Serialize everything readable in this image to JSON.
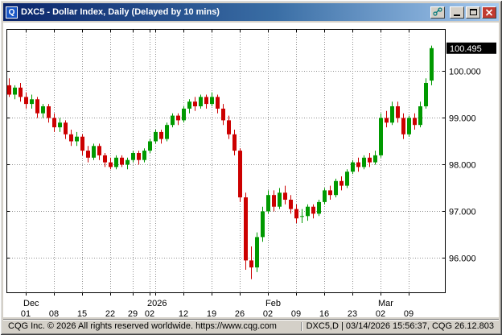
{
  "window": {
    "title": "DXC5 - Dollar Index, Daily (Delayed by 10 mins)",
    "icon_letter": "Q",
    "titlebar_icons": [
      "link-icon",
      "minimize-icon",
      "maximize-icon",
      "close-icon"
    ]
  },
  "status_bar": {
    "left": "CQG Inc. © 2026 All rights reserved worldwide. https://www.cqg.com",
    "right": "DXC5,D | 03/14/2026 15:56:37, CQG 26.12.803"
  },
  "chart_data": {
    "type": "candlestick",
    "symbol": "DXC5",
    "period": "Daily",
    "title": "DXC5 - Dollar Index, Daily (Delayed by 10 mins)",
    "grid": true,
    "colors": {
      "up": "#009900",
      "down": "#cc0000",
      "grid": "#909090",
      "axis_text": "#000000",
      "price_tag_bg": "#000000",
      "price_tag_text": "#ffffff"
    },
    "y_axis": {
      "min": 95.25,
      "max": 100.905,
      "ticks": [
        {
          "value": 100,
          "label": "100.000"
        },
        {
          "value": 99,
          "label": "99.000"
        },
        {
          "value": 98,
          "label": "98.000"
        },
        {
          "value": 97,
          "label": "97.000"
        },
        {
          "value": 96,
          "label": "96.000"
        }
      ]
    },
    "current_price": 100.495,
    "current_price_label": "100.495",
    "x_ticks": [
      {
        "i": 3,
        "label": "01"
      },
      {
        "i": 8,
        "label": "08"
      },
      {
        "i": 13,
        "label": "15"
      },
      {
        "i": 18,
        "label": "22"
      },
      {
        "i": 22,
        "label": "29"
      },
      {
        "i": 25,
        "label": "02"
      },
      {
        "i": 31,
        "label": "12"
      },
      {
        "i": 36,
        "label": "19"
      },
      {
        "i": 41,
        "label": "26"
      },
      {
        "i": 46,
        "label": "02"
      },
      {
        "i": 51,
        "label": "09"
      },
      {
        "i": 56,
        "label": "16"
      },
      {
        "i": 61,
        "label": "23"
      },
      {
        "i": 66,
        "label": "02"
      },
      {
        "i": 71,
        "label": "09"
      }
    ],
    "month_labels": [
      {
        "i": 3,
        "label": "Dec"
      },
      {
        "i": 25,
        "label": "2026"
      },
      {
        "i": 46,
        "label": "Feb"
      },
      {
        "i": 66,
        "label": "Mar"
      }
    ],
    "grid_indices": [
      3,
      8,
      13,
      18,
      22,
      25,
      26,
      31,
      36,
      41,
      46,
      51,
      56,
      61,
      66,
      71
    ],
    "candles": [
      [
        99.7,
        99.85,
        99.45,
        99.5
      ],
      [
        99.5,
        99.7,
        99.4,
        99.65
      ],
      [
        99.65,
        99.75,
        99.35,
        99.45
      ],
      [
        99.45,
        99.55,
        99.2,
        99.3
      ],
      [
        99.3,
        99.5,
        99.2,
        99.4
      ],
      [
        99.4,
        99.45,
        99.0,
        99.1
      ],
      [
        99.1,
        99.3,
        99.0,
        99.25
      ],
      [
        99.25,
        99.3,
        98.9,
        99.0
      ],
      [
        99.0,
        99.1,
        98.7,
        98.8
      ],
      [
        98.8,
        99.0,
        98.7,
        98.9
      ],
      [
        98.9,
        98.95,
        98.55,
        98.65
      ],
      [
        98.65,
        98.75,
        98.4,
        98.5
      ],
      [
        98.5,
        98.7,
        98.4,
        98.6
      ],
      [
        98.6,
        98.65,
        98.2,
        98.3
      ],
      [
        98.3,
        98.4,
        98.05,
        98.15
      ],
      [
        98.15,
        98.45,
        98.1,
        98.4
      ],
      [
        98.4,
        98.45,
        98.1,
        98.2
      ],
      [
        98.2,
        98.25,
        97.95,
        98.05
      ],
      [
        98.05,
        98.15,
        97.9,
        97.95
      ],
      [
        97.95,
        98.2,
        97.9,
        98.15
      ],
      [
        98.15,
        98.2,
        97.95,
        98.0
      ],
      [
        98.0,
        98.15,
        97.9,
        98.1
      ],
      [
        98.1,
        98.3,
        98.05,
        98.25
      ],
      [
        98.25,
        98.3,
        98.0,
        98.1
      ],
      [
        98.1,
        98.35,
        98.05,
        98.3
      ],
      [
        98.3,
        98.55,
        98.25,
        98.5
      ],
      [
        98.5,
        98.75,
        98.45,
        98.7
      ],
      [
        98.7,
        98.75,
        98.45,
        98.55
      ],
      [
        98.55,
        98.9,
        98.5,
        98.85
      ],
      [
        98.85,
        99.1,
        98.8,
        99.05
      ],
      [
        99.05,
        99.1,
        98.85,
        98.95
      ],
      [
        98.95,
        99.25,
        98.9,
        99.2
      ],
      [
        99.2,
        99.4,
        99.1,
        99.35
      ],
      [
        99.35,
        99.45,
        99.15,
        99.25
      ],
      [
        99.25,
        99.5,
        99.2,
        99.45
      ],
      [
        99.45,
        99.5,
        99.2,
        99.3
      ],
      [
        99.3,
        99.55,
        99.25,
        99.45
      ],
      [
        99.45,
        99.5,
        99.1,
        99.2
      ],
      [
        99.2,
        99.3,
        98.85,
        98.95
      ],
      [
        98.95,
        99.05,
        98.55,
        98.65
      ],
      [
        98.65,
        98.75,
        98.2,
        98.3
      ],
      [
        98.3,
        98.35,
        97.2,
        97.3
      ],
      [
        97.3,
        97.4,
        95.75,
        95.95
      ],
      [
        95.95,
        96.25,
        95.55,
        95.8
      ],
      [
        95.8,
        96.55,
        95.7,
        96.45
      ],
      [
        96.45,
        97.1,
        96.35,
        97.0
      ],
      [
        97.0,
        97.45,
        96.95,
        97.35
      ],
      [
        97.35,
        97.45,
        97.0,
        97.1
      ],
      [
        97.1,
        97.5,
        97.05,
        97.4
      ],
      [
        97.4,
        97.55,
        97.15,
        97.25
      ],
      [
        97.25,
        97.35,
        96.95,
        97.05
      ],
      [
        97.05,
        97.15,
        96.75,
        96.85
      ],
      [
        96.9,
        97.05,
        96.75,
        96.9
      ],
      [
        96.9,
        97.15,
        96.8,
        97.1
      ],
      [
        97.1,
        97.15,
        96.85,
        96.95
      ],
      [
        96.95,
        97.25,
        96.9,
        97.2
      ],
      [
        97.2,
        97.5,
        97.15,
        97.45
      ],
      [
        97.45,
        97.55,
        97.25,
        97.35
      ],
      [
        97.35,
        97.7,
        97.3,
        97.65
      ],
      [
        97.65,
        97.75,
        97.45,
        97.55
      ],
      [
        97.55,
        97.9,
        97.5,
        97.85
      ],
      [
        97.85,
        98.1,
        97.8,
        98.05
      ],
      [
        98.05,
        98.15,
        97.85,
        97.95
      ],
      [
        97.95,
        98.2,
        97.9,
        98.15
      ],
      [
        98.15,
        98.25,
        97.95,
        98.05
      ],
      [
        98.05,
        98.3,
        98.0,
        98.2
      ],
      [
        98.2,
        99.1,
        98.15,
        99.0
      ],
      [
        99.0,
        99.15,
        98.8,
        98.9
      ],
      [
        98.9,
        99.35,
        98.85,
        99.25
      ],
      [
        99.25,
        99.35,
        98.9,
        99.0
      ],
      [
        99.0,
        99.1,
        98.55,
        98.65
      ],
      [
        98.65,
        99.05,
        98.6,
        99.0
      ],
      [
        99.0,
        99.1,
        98.75,
        98.85
      ],
      [
        98.85,
        99.35,
        98.8,
        99.25
      ],
      [
        99.25,
        99.85,
        99.2,
        99.75
      ],
      [
        99.8,
        100.55,
        99.7,
        100.495
      ]
    ]
  }
}
